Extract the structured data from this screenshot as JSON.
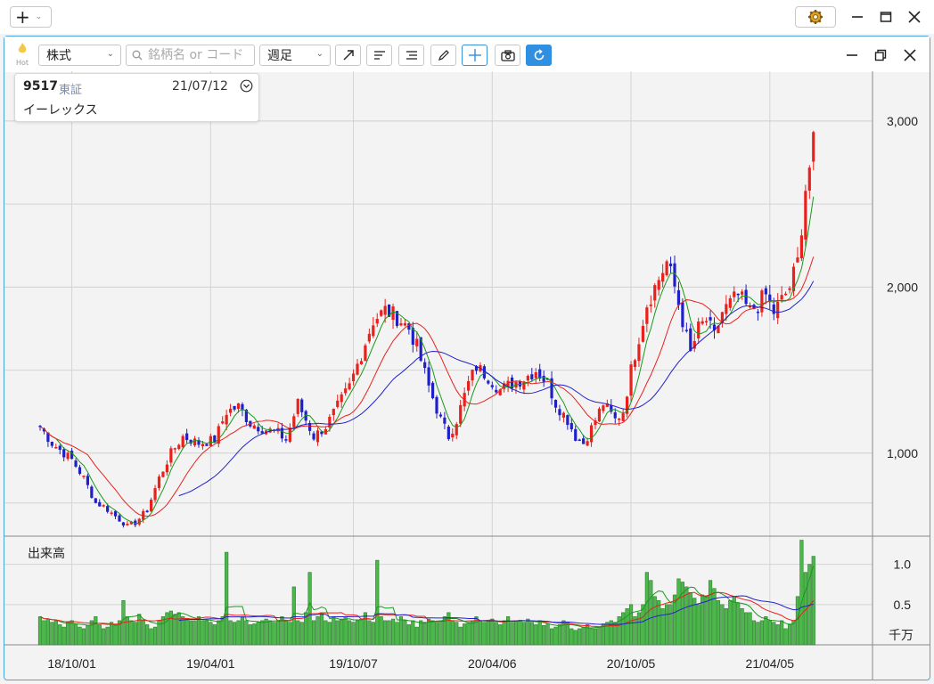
{
  "outer": {
    "add_icon": "plus-icon",
    "settings_icon": "gear-icon",
    "controls": [
      "minimize-icon",
      "maximize-icon",
      "close-icon"
    ]
  },
  "toolbar": {
    "hot_label": "Hot",
    "market_type": "株式",
    "search_placeholder": "銘柄名 or コード",
    "period": "週足",
    "tools": [
      "trendline-icon",
      "align-left-icon",
      "align-right-icon",
      "pencil-icon",
      "crosshair-icon",
      "camera-icon",
      "refresh-icon"
    ]
  },
  "stock": {
    "code": "9517",
    "market": "東証",
    "date": "21/07/12",
    "name": "イーレックス"
  },
  "colors": {
    "up": "#e8211c",
    "down": "#2020c8",
    "ma_short": "#1a9a1a",
    "ma_mid": "#e8211c",
    "ma_long": "#2222cc",
    "volume": "#4cb84c",
    "accent": "#2f8fe0"
  },
  "price_axis": {
    "ticks": [
      {
        "value": 3000,
        "label": "3,000"
      },
      {
        "value": 2000,
        "label": "2,000"
      },
      {
        "value": 1000,
        "label": "1,000"
      }
    ],
    "range": [
      500,
      3300
    ]
  },
  "volume_axis": {
    "title": "出来高",
    "unit": "千万",
    "ticks": [
      {
        "value": 1.0,
        "label": "1.0"
      },
      {
        "value": 0.5,
        "label": "0.5"
      }
    ],
    "range": [
      0,
      1.35
    ]
  },
  "x_axis": {
    "labels": [
      "18/10/01",
      "19/04/01",
      "19/10/07",
      "20/04/06",
      "20/10/05",
      "21/04/05"
    ]
  },
  "chart_data": {
    "type": "candlestick",
    "series": [
      {
        "name": "weekly_close",
        "anchors": [
          [
            0,
            1160
          ],
          [
            3,
            1060
          ],
          [
            8,
            960
          ],
          [
            11,
            850
          ],
          [
            14,
            700
          ],
          [
            16,
            680
          ],
          [
            19,
            620
          ],
          [
            22,
            560
          ],
          [
            24,
            580
          ],
          [
            27,
            660
          ],
          [
            30,
            850
          ],
          [
            33,
            1000
          ],
          [
            36,
            1100
          ],
          [
            40,
            1060
          ],
          [
            44,
            1080
          ],
          [
            47,
            1250
          ],
          [
            50,
            1280
          ],
          [
            53,
            1180
          ],
          [
            56,
            1150
          ],
          [
            60,
            1120
          ],
          [
            62,
            1080
          ],
          [
            65,
            1300
          ],
          [
            69,
            1100
          ],
          [
            72,
            1160
          ],
          [
            75,
            1280
          ],
          [
            78,
            1400
          ],
          [
            81,
            1600
          ],
          [
            84,
            1800
          ],
          [
            87,
            1860
          ],
          [
            90,
            1820
          ],
          [
            93,
            1750
          ],
          [
            95,
            1640
          ],
          [
            98,
            1400
          ],
          [
            101,
            1200
          ],
          [
            103,
            1100
          ],
          [
            105,
            1200
          ],
          [
            108,
            1420
          ],
          [
            110,
            1520
          ],
          [
            113,
            1460
          ],
          [
            116,
            1380
          ],
          [
            119,
            1420
          ],
          [
            122,
            1450
          ],
          [
            125,
            1500
          ],
          [
            128,
            1420
          ],
          [
            130,
            1300
          ],
          [
            133,
            1200
          ],
          [
            135,
            1100
          ],
          [
            137,
            1060
          ],
          [
            139,
            1150
          ],
          [
            142,
            1300
          ],
          [
            145,
            1200
          ],
          [
            147,
            1250
          ],
          [
            149,
            1500
          ],
          [
            151,
            1700
          ],
          [
            153,
            1900
          ],
          [
            156,
            2050
          ],
          [
            158,
            2150
          ],
          [
            160,
            2000
          ],
          [
            162,
            1800
          ],
          [
            164,
            1600
          ],
          [
            166,
            1750
          ],
          [
            168,
            1800
          ],
          [
            170,
            1700
          ],
          [
            172,
            1850
          ],
          [
            174,
            1900
          ],
          [
            176,
            1950
          ],
          [
            179,
            1850
          ],
          [
            181,
            1900
          ],
          [
            183,
            1950
          ],
          [
            185,
            1850
          ],
          [
            187,
            1920
          ],
          [
            189,
            2000
          ],
          [
            191,
            2150
          ],
          [
            193,
            2600
          ],
          [
            195,
            2850
          ],
          [
            197,
            2950
          ],
          [
            198,
            2950
          ]
        ]
      },
      {
        "name": "weekly_volume",
        "values": [
          0.35,
          0.3,
          0.32,
          0.28,
          0.3,
          0.25,
          0.22,
          0.28,
          0.3,
          0.26,
          0.22,
          0.2,
          0.24,
          0.3,
          0.35,
          0.25,
          0.2,
          0.22,
          0.28,
          0.25,
          0.3,
          0.55,
          0.35,
          0.3,
          0.28,
          0.38,
          0.3,
          0.25,
          0.2,
          0.22,
          0.3,
          0.35,
          0.4,
          0.42,
          0.38,
          0.4,
          0.35,
          0.32,
          0.3,
          0.3,
          0.35,
          0.3,
          0.3,
          0.28,
          0.25,
          0.3,
          0.35,
          1.15,
          0.3,
          0.28,
          0.3,
          0.35,
          0.3,
          0.25,
          0.26,
          0.28,
          0.3,
          0.32,
          0.3,
          0.28,
          0.3,
          0.35,
          0.3,
          0.28,
          0.72,
          0.3,
          0.28,
          0.4,
          0.9,
          0.3,
          0.35,
          0.4,
          0.3,
          0.28,
          0.35,
          0.3,
          0.32,
          0.35,
          0.3,
          0.28,
          0.3,
          0.32,
          0.4,
          0.3,
          0.28,
          1.05,
          0.35,
          0.3,
          0.3,
          0.32,
          0.28,
          0.35,
          0.3,
          0.25,
          0.3,
          0.22,
          0.3,
          0.28,
          0.32,
          0.3,
          0.28,
          0.3,
          0.35,
          0.4,
          0.3,
          0.28,
          0.22,
          0.26,
          0.28,
          0.3,
          0.35,
          0.3,
          0.28,
          0.3,
          0.32,
          0.28,
          0.25,
          0.3,
          0.35,
          0.28,
          0.3,
          0.3,
          0.28,
          0.32,
          0.28,
          0.25,
          0.3,
          0.24,
          0.26,
          0.2,
          0.22,
          0.25,
          0.3,
          0.28,
          0.2,
          0.18,
          0.2,
          0.22,
          0.25,
          0.2,
          0.2,
          0.22,
          0.26,
          0.28,
          0.3,
          0.28,
          0.35,
          0.4,
          0.45,
          0.5,
          0.35,
          0.4,
          0.5,
          0.9,
          0.8,
          0.6,
          0.55,
          0.45,
          0.5,
          0.5,
          0.62,
          0.82,
          0.78,
          0.72,
          0.65,
          0.58,
          0.5,
          0.62,
          0.6,
          0.8,
          0.7,
          0.55,
          0.5,
          0.45,
          0.55,
          0.6,
          0.52,
          0.45,
          0.4,
          0.4,
          0.3,
          0.28,
          0.3,
          0.35,
          0.3,
          0.28,
          0.25,
          0.3,
          0.2,
          0.25,
          0.3,
          0.6,
          1.3,
          0.9,
          1.0,
          1.1
        ]
      }
    ]
  }
}
